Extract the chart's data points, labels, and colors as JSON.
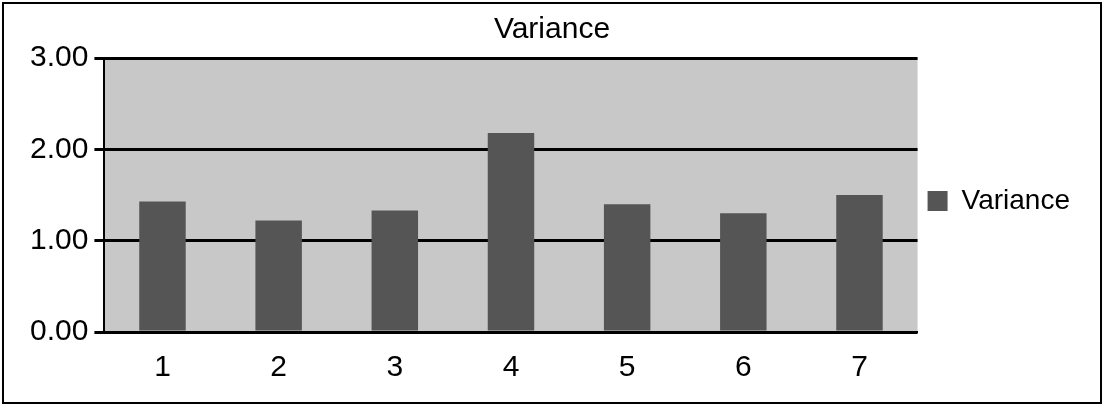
{
  "chart_data": {
    "type": "bar",
    "title": "Variance",
    "categories": [
      "1",
      "2",
      "3",
      "4",
      "5",
      "6",
      "7"
    ],
    "series": [
      {
        "name": "Variance",
        "color": "#555555",
        "values": [
          1.43,
          1.22,
          1.33,
          2.18,
          1.4,
          1.3,
          1.5
        ]
      }
    ],
    "ylim": [
      0,
      3
    ],
    "yticks": [
      {
        "value": 0,
        "label": "0.00"
      },
      {
        "value": 1,
        "label": "1.00"
      },
      {
        "value": 2,
        "label": "2.00"
      },
      {
        "value": 3,
        "label": "3.00"
      }
    ],
    "grid": "y",
    "legend": "right"
  }
}
